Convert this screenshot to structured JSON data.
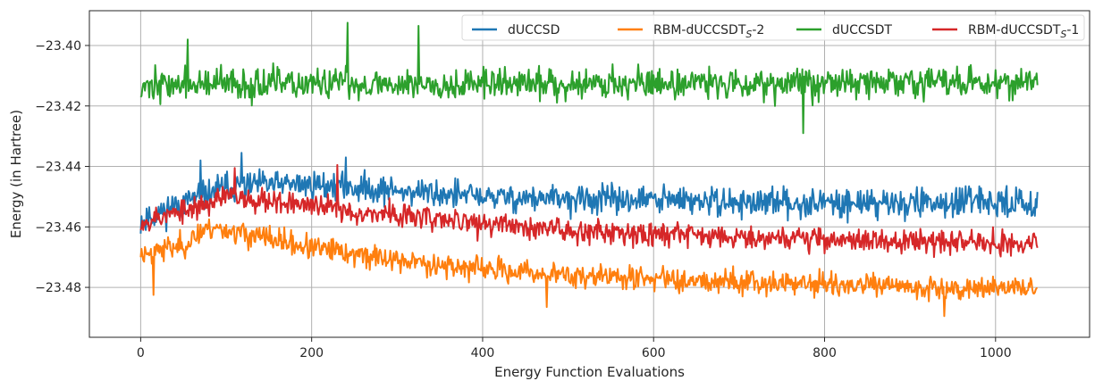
{
  "chart_data": {
    "type": "line",
    "xlabel": "Energy Function Evaluations",
    "ylabel": "Energy (in Hartree)",
    "xlim": [
      -60,
      1110
    ],
    "ylim": [
      -23.4965,
      -23.3885
    ],
    "xticks": [
      0,
      200,
      400,
      600,
      800,
      1000
    ],
    "xtick_labels": [
      "0",
      "200",
      "400",
      "600",
      "800",
      "1000"
    ],
    "yticks": [
      -23.48,
      -23.46,
      -23.44,
      -23.42,
      -23.4
    ],
    "ytick_labels": [
      "−23.48",
      "−23.46",
      "−23.44",
      "−23.42",
      "−23.40"
    ],
    "grid": true,
    "legend_position": "top-right",
    "x_count": 1050,
    "series": [
      {
        "name": "dUCCSD",
        "color": "#1f77b4",
        "trend_x": [
          0,
          50,
          100,
          150,
          200,
          250,
          300,
          350,
          400,
          500,
          600,
          700,
          800,
          900,
          1000,
          1050
        ],
        "trend_y": [
          -23.458,
          -23.452,
          -23.447,
          -23.446,
          -23.446,
          -23.447,
          -23.448,
          -23.449,
          -23.45,
          -23.451,
          -23.451,
          -23.452,
          -23.452,
          -23.452,
          -23.452,
          -23.452
        ],
        "noise": 0.0038,
        "spikes": [
          [
            118,
            -23.4355
          ],
          [
            70,
            -23.438
          ],
          [
            240,
            -23.437
          ]
        ],
        "seed": 11
      },
      {
        "name": "RBM-dUCCSDT",
        "legend_subscript": "S",
        "legend_suffix": "-2",
        "color": "#ff7f0e",
        "trend_x": [
          0,
          50,
          80,
          100,
          150,
          200,
          250,
          300,
          400,
          500,
          600,
          700,
          800,
          900,
          1000,
          1050
        ],
        "trend_y": [
          -23.469,
          -23.466,
          -23.46,
          -23.461,
          -23.464,
          -23.467,
          -23.469,
          -23.471,
          -23.474,
          -23.476,
          -23.477,
          -23.478,
          -23.479,
          -23.48,
          -23.48,
          -23.48
        ],
        "noise": 0.0032,
        "spikes": [
          [
            15,
            -23.4825
          ],
          [
            940,
            -23.4895
          ],
          [
            475,
            -23.4865
          ]
        ],
        "seed": 23
      },
      {
        "name": "dUCCSDT",
        "color": "#2ca02c",
        "trend_x": [
          0,
          1050
        ],
        "trend_y": [
          -23.413,
          -23.412
        ],
        "noise": 0.0042,
        "spikes": [
          [
            242,
            -23.3925
          ],
          [
            55,
            -23.398
          ],
          [
            325,
            -23.3935
          ],
          [
            775,
            -23.429
          ]
        ],
        "seed": 37
      },
      {
        "name": "RBM-dUCCSDT",
        "legend_subscript": "S",
        "legend_suffix": "-1",
        "color": "#d62728",
        "trend_x": [
          0,
          50,
          100,
          150,
          200,
          250,
          300,
          400,
          500,
          600,
          700,
          800,
          900,
          1000,
          1050
        ],
        "trend_y": [
          -23.458,
          -23.455,
          -23.45,
          -23.451,
          -23.453,
          -23.455,
          -23.456,
          -23.459,
          -23.461,
          -23.462,
          -23.463,
          -23.464,
          -23.465,
          -23.465,
          -23.465
        ],
        "noise": 0.0032,
        "spikes": [
          [
            230,
            -23.4395
          ],
          [
            110,
            -23.4405
          ]
        ],
        "seed": 53
      }
    ]
  }
}
